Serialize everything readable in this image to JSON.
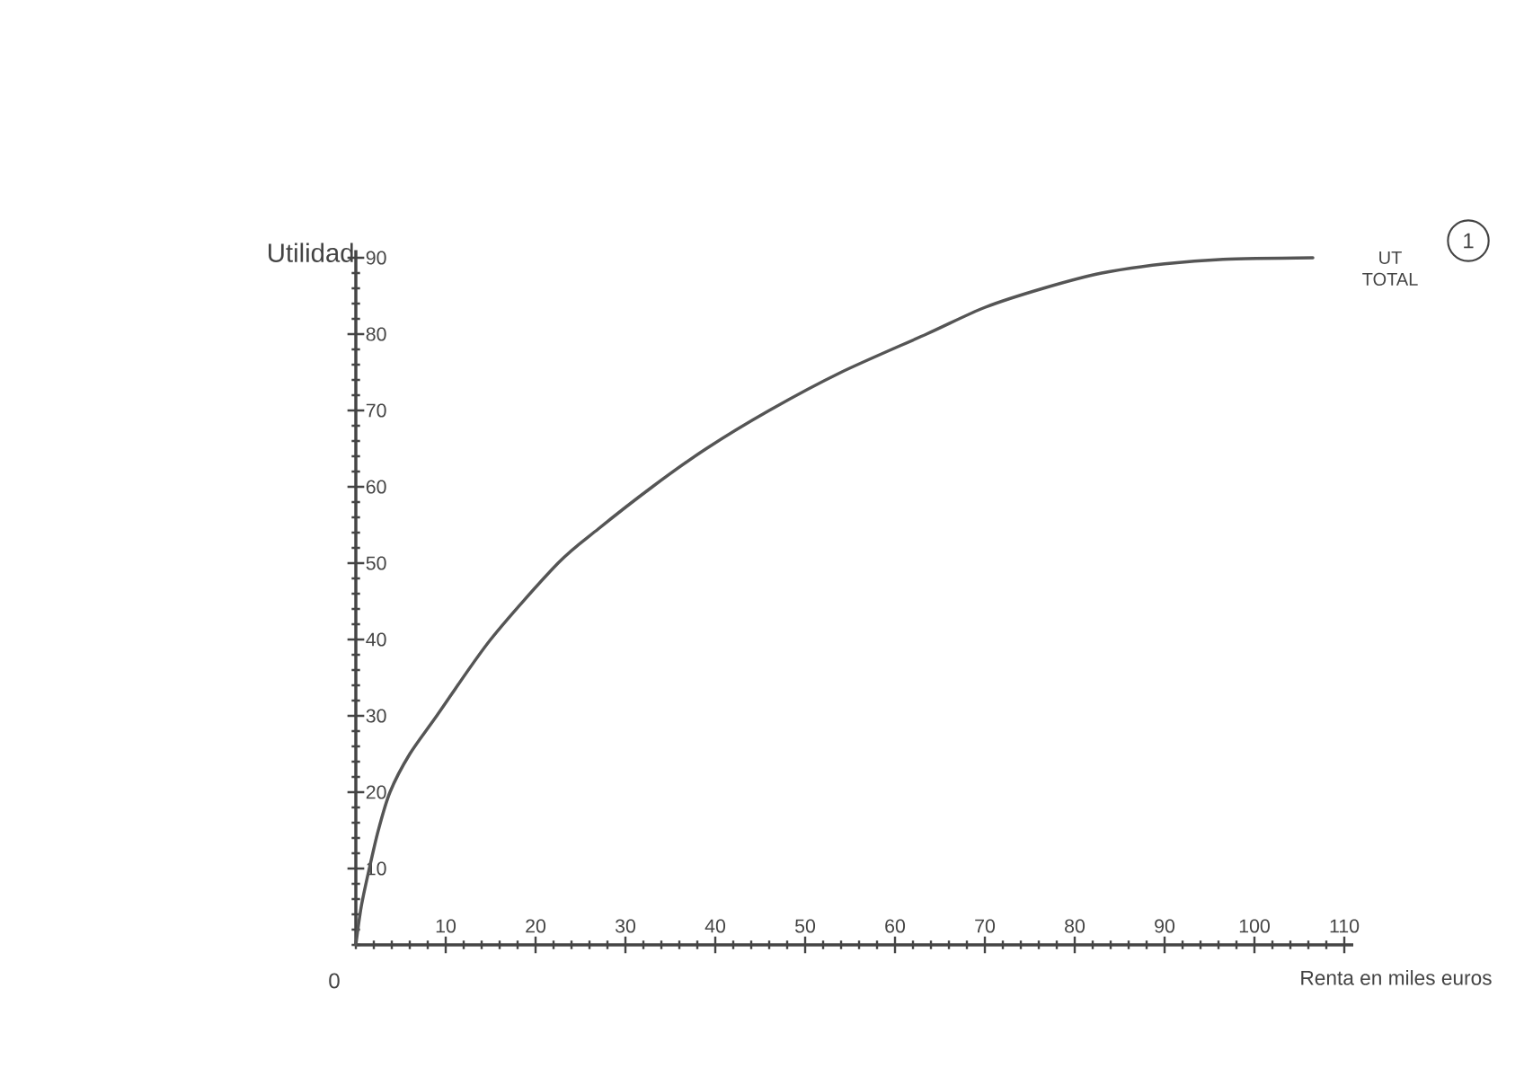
{
  "chart_data": {
    "type": "line",
    "xlabel": "Renta en miles euros",
    "ylabel": "Utilidad",
    "annotations": [
      "1",
      {
        "text": "0",
        "x": 0,
        "y": 0
      }
    ],
    "x": [
      0,
      0.6,
      1.5,
      2.5,
      3.8,
      6,
      9,
      15,
      22.5,
      27,
      33,
      39,
      46,
      54,
      63.5,
      70,
      76.5,
      83,
      90,
      96.5,
      106.5
    ],
    "series": [
      {
        "name": "UT TOTAL",
        "color": "#555555",
        "values": [
          0,
          5,
          10,
          15,
          20,
          25,
          30,
          40,
          50,
          54.5,
          60,
          65,
          70,
          75,
          80,
          83.5,
          86,
          88,
          89.2,
          89.8,
          90
        ]
      }
    ],
    "xlim": [
      0,
      111
    ],
    "ylim": [
      0,
      91
    ],
    "xticks": [
      10,
      20,
      30,
      40,
      50,
      60,
      70,
      80,
      90,
      100,
      110
    ],
    "yticks": [
      10,
      20,
      30,
      40,
      50,
      60,
      70,
      80,
      90
    ],
    "legend": false,
    "line_style": "solid"
  }
}
